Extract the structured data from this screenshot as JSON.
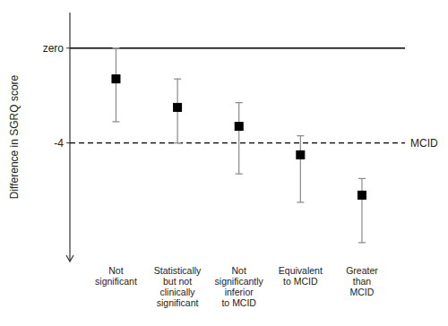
{
  "chart_data": {
    "type": "errorbar",
    "categories": [
      "Not\nsignificant",
      "Statistically\nbut not\nclinically\nsignificant",
      "Not\nsignificantly\ninferior\nto MCID",
      "Equivalent\nto MCID",
      "Greater\nthan\nMCID"
    ],
    "values": [
      -1.3,
      -2.5,
      -3.3,
      -4.5,
      -6.2
    ],
    "error_upper": [
      1.3,
      1.2,
      1.0,
      0.8,
      0.7
    ],
    "error_lower": [
      1.8,
      1.5,
      2.0,
      2.0,
      2.0
    ],
    "y_label": "Difference in SGRQ score",
    "ylim": [
      -9.0,
      1.5
    ],
    "yticks": [
      {
        "value": 0,
        "label": "zero"
      },
      -4
    ],
    "annotations": [
      {
        "y": -4,
        "text": "MCID"
      }
    ],
    "color": "#000000",
    "marker": "square",
    "grid": false
  }
}
